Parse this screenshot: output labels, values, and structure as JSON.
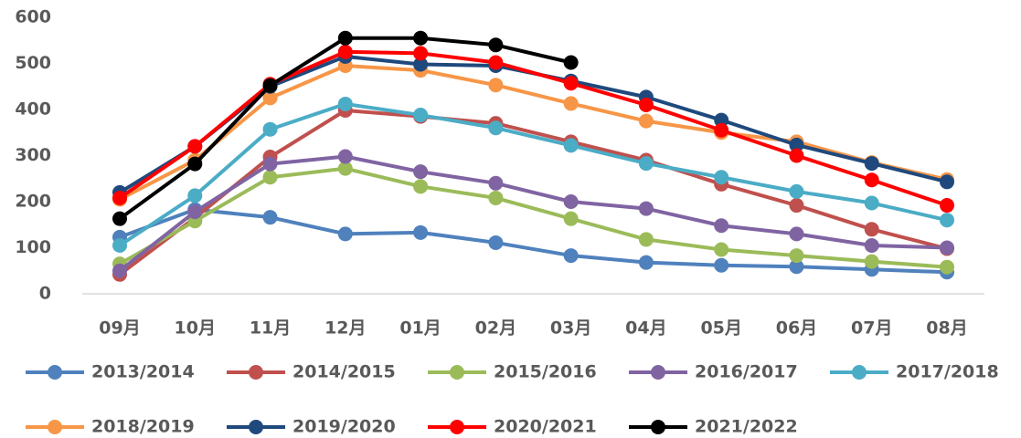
{
  "chart_data": {
    "type": "line",
    "categories": [
      "09月",
      "10月",
      "11月",
      "12月",
      "01月",
      "02月",
      "03月",
      "04月",
      "05月",
      "06月",
      "07月",
      "08月"
    ],
    "ylim": [
      0,
      600
    ],
    "yticks": [
      0,
      100,
      200,
      300,
      400,
      500,
      600
    ],
    "series": [
      {
        "name": "2013/2014",
        "color": "#4f81bd",
        "values": [
          123,
          183,
          166,
          130,
          133,
          111,
          83,
          68,
          62,
          59,
          53,
          47
        ]
      },
      {
        "name": "2014/2015",
        "color": "#c0504d",
        "values": [
          42,
          165,
          297,
          398,
          385,
          370,
          330,
          290,
          238,
          192,
          140,
          98
        ]
      },
      {
        "name": "2015/2016",
        "color": "#9bbb59",
        "values": [
          65,
          158,
          253,
          272,
          233,
          208,
          163,
          118,
          96,
          83,
          70,
          58
        ]
      },
      {
        "name": "2016/2017",
        "color": "#8064a2",
        "values": [
          50,
          178,
          282,
          298,
          265,
          240,
          200,
          185,
          148,
          130,
          105,
          100
        ]
      },
      {
        "name": "2017/2018",
        "color": "#4bacc6",
        "values": [
          105,
          213,
          357,
          412,
          388,
          360,
          322,
          283,
          253,
          222,
          197,
          160
        ]
      },
      {
        "name": "2018/2019",
        "color": "#f79646",
        "values": [
          205,
          290,
          425,
          495,
          485,
          453,
          413,
          375,
          350,
          330,
          285,
          248
        ]
      },
      {
        "name": "2019/2020",
        "color": "#1f497d",
        "values": [
          220,
          320,
          450,
          515,
          498,
          495,
          462,
          427,
          377,
          323,
          283,
          243
        ]
      },
      {
        "name": "2020/2021",
        "color": "#ff0000",
        "values": [
          208,
          320,
          455,
          525,
          522,
          502,
          457,
          410,
          355,
          300,
          247,
          192
        ]
      },
      {
        "name": "2021/2022",
        "color": "#000000",
        "values": [
          163,
          282,
          452,
          555,
          555,
          540,
          502,
          null,
          null,
          null,
          null,
          null
        ]
      }
    ]
  }
}
